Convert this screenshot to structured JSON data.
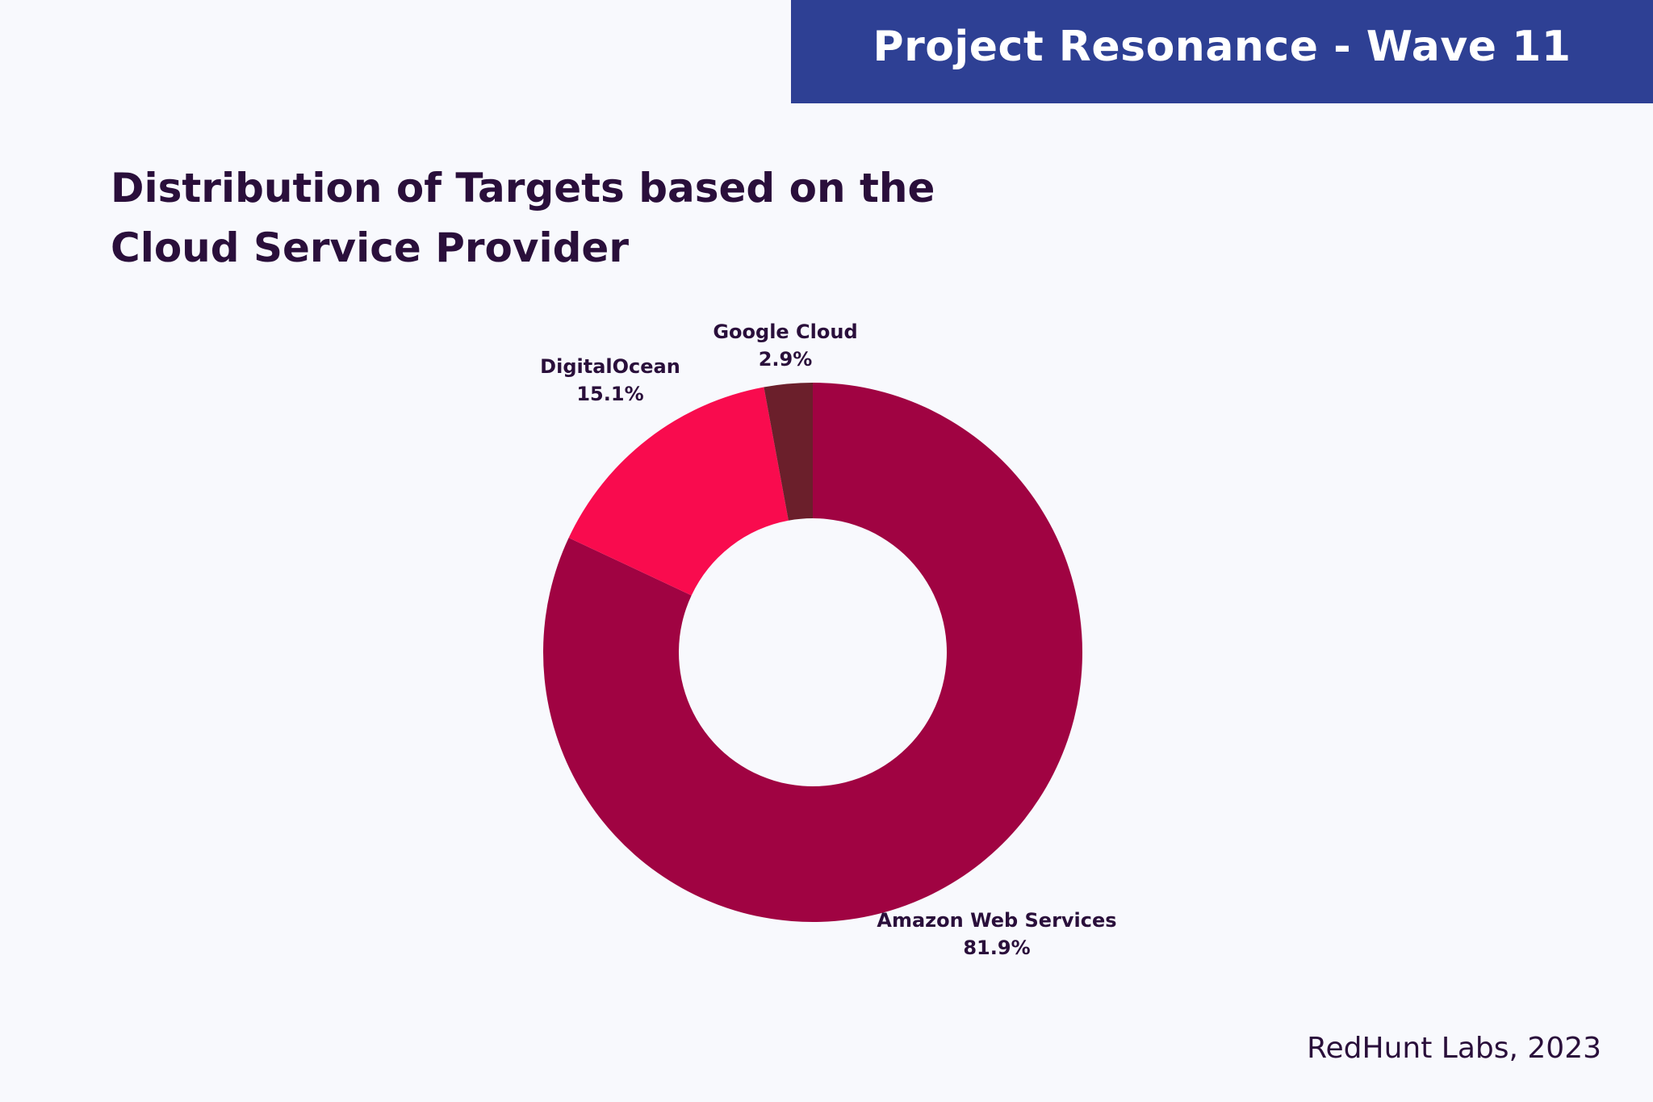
{
  "header": {
    "title": "Project Resonance - Wave 11"
  },
  "footer": {
    "credit": "RedHunt Labs, 2023"
  },
  "chart_data": {
    "type": "pie",
    "donut": true,
    "title_lines": [
      "Distribution of Targets based on the",
      "Cloud Service Provider"
    ],
    "slices": [
      {
        "label": "Amazon Web Services",
        "value": 81.9,
        "value_label": "81.9%",
        "color": "#a00342"
      },
      {
        "label": "DigitalOcean",
        "value": 15.1,
        "value_label": "15.1%",
        "color": "#f90b4e"
      },
      {
        "label": "Google Cloud",
        "value": 2.9,
        "value_label": "2.9%",
        "color": "#6b1f2b"
      }
    ],
    "start_angle_deg": 0,
    "direction": "clockwise",
    "label_color": "#2a0f3b"
  },
  "colors": {
    "background": "#f8f9fd",
    "header_band": "#2e4094",
    "text": "#2a0f3b"
  }
}
